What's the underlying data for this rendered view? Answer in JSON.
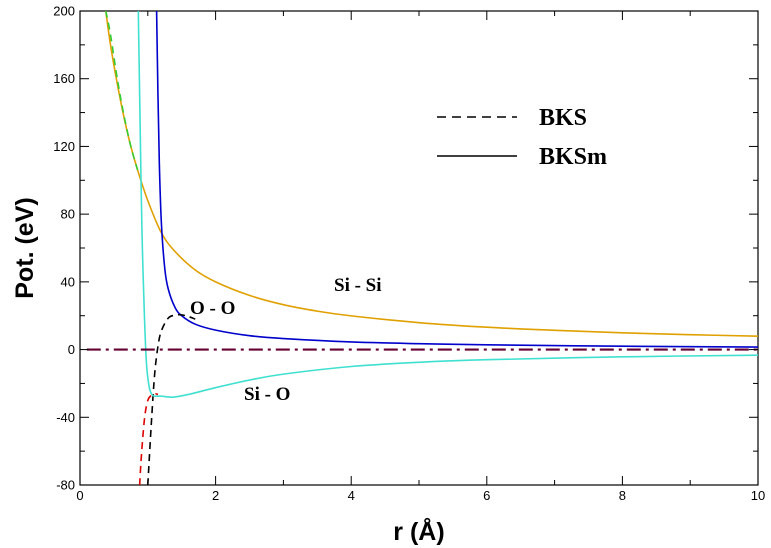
{
  "chart_data": {
    "type": "line",
    "xlabel": "r (Å)",
    "ylabel": "Pot. (eV)",
    "xlim": [
      0,
      10
    ],
    "ylim": [
      -80,
      200
    ],
    "xticks": [
      0,
      2,
      4,
      6,
      8,
      10
    ],
    "xtick_labels": [
      "0",
      "2",
      "4",
      "6",
      "8",
      "10"
    ],
    "yticks": [
      -80,
      -40,
      0,
      40,
      80,
      120,
      160,
      200
    ],
    "ytick_labels": [
      "-80",
      "-40",
      "0",
      "40",
      "80",
      "120",
      "160",
      "200"
    ],
    "grid": false,
    "legend": {
      "placement": "top-center",
      "entries": [
        {
          "label": "BKS",
          "style": "dashed"
        },
        {
          "label": "BKSm",
          "style": "solid"
        }
      ]
    },
    "annotations": [
      {
        "text": "O - O",
        "x": 2.05,
        "y": 21
      },
      {
        "text": "Si - Si",
        "x": 3.8,
        "y": 35
      },
      {
        "text": "Si - O",
        "x": 2.45,
        "y": -27
      }
    ],
    "series": [
      {
        "style": "solid",
        "color": "#e0a000",
        "x": [
          0.38,
          0.45,
          0.55,
          0.65,
          0.75,
          0.85,
          1.0,
          1.2,
          1.4,
          1.7,
          2.0,
          2.5,
          3.0,
          3.5,
          4.0,
          5.0,
          6.0,
          7.0,
          8.0,
          9.0,
          10.0
        ],
        "y": [
          200,
          180,
          157,
          137,
          120,
          106,
          88,
          69,
          58,
          47,
          40,
          32,
          26.5,
          22.7,
          19.9,
          15.9,
          13.2,
          11.4,
          9.9,
          8.8,
          7.9
        ]
      },
      {
        "style": "dashed",
        "color": "#33cc33",
        "x": [
          0.38,
          0.45,
          0.55,
          0.65,
          0.75,
          0.85
        ],
        "y": [
          200,
          186,
          160,
          138,
          120,
          106
        ]
      },
      {
        "style": "solid",
        "color": "#0000cc",
        "x": [
          1.13,
          1.15,
          1.17,
          1.2,
          1.25,
          1.3,
          1.4,
          1.5,
          1.7,
          2.0,
          2.5,
          3.0,
          4.0,
          5.0,
          6.0,
          8.0,
          10.0
        ],
        "y": [
          200,
          150,
          110,
          75,
          48,
          36,
          25,
          20,
          15,
          11.5,
          8.2,
          6.5,
          4.5,
          3.5,
          2.8,
          2.0,
          1.5
        ]
      },
      {
        "style": "dashed",
        "color": "#000000",
        "x": [
          1.0,
          1.05,
          1.1,
          1.15,
          1.2,
          1.3,
          1.4,
          1.5,
          1.6,
          1.7
        ],
        "y": [
          -80,
          -45,
          -15,
          2,
          11,
          18.5,
          20.3,
          20.5,
          19.5,
          18
        ]
      },
      {
        "style": "solid",
        "color": "#40e0d0",
        "x": [
          0.86,
          0.88,
          0.9,
          0.92,
          0.95,
          0.98,
          1.02,
          1.06,
          1.1,
          1.2,
          1.3,
          1.4,
          1.6,
          1.8,
          2.0,
          2.5,
          3.0,
          4.0,
          5.0,
          6.0,
          8.0,
          10.0
        ],
        "y": [
          200,
          150,
          100,
          60,
          20,
          -8,
          -22,
          -26.5,
          -27.5,
          -27.5,
          -28,
          -28,
          -26.5,
          -24.5,
          -22.5,
          -18,
          -14.5,
          -10,
          -7.5,
          -6,
          -4.3,
          -3.3
        ]
      },
      {
        "style": "dashed",
        "color": "#dd0000",
        "x": [
          0.88,
          0.9,
          0.93,
          0.96,
          1.0,
          1.05,
          1.1,
          1.15
        ],
        "y": [
          -80,
          -66,
          -50,
          -38,
          -30,
          -27,
          -26,
          -26.5
        ]
      },
      {
        "style": "dashdot",
        "color": "#660033",
        "x": [
          0.1,
          10.0
        ],
        "y": [
          0,
          0
        ]
      }
    ]
  }
}
